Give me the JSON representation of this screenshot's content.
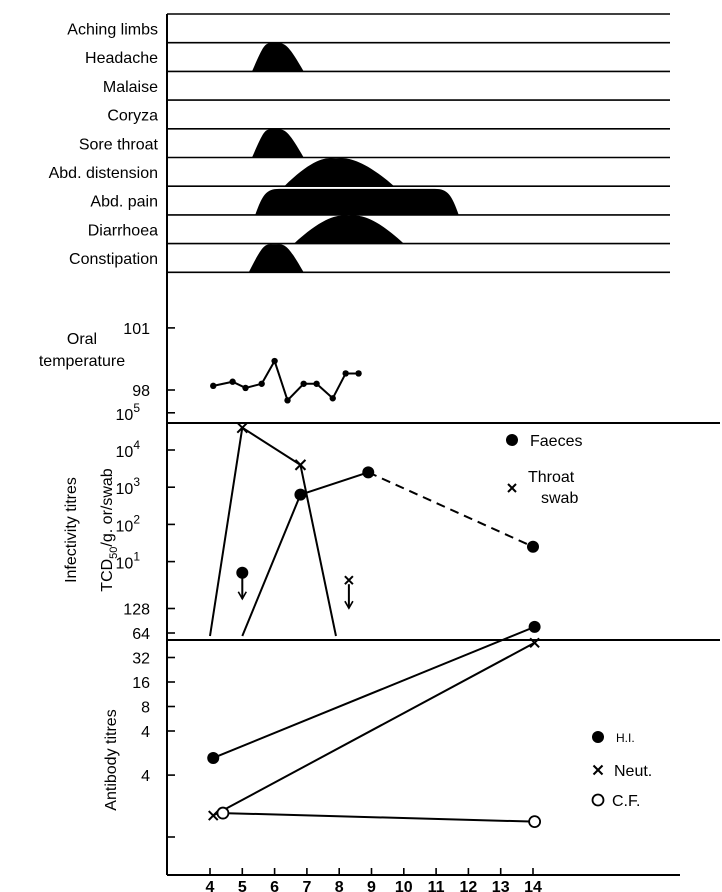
{
  "chart_data": [
    {
      "type": "timeline",
      "panel": "symptoms",
      "rows": [
        {
          "label": "Aching limbs",
          "episodes": []
        },
        {
          "label": "Headache",
          "episodes": [
            {
              "start": 5.3,
              "end": 6.9,
              "peak": 6.0
            }
          ]
        },
        {
          "label": "Malaise",
          "episodes": []
        },
        {
          "label": "Coryza",
          "episodes": []
        },
        {
          "label": "Sore throat",
          "episodes": [
            {
              "start": 5.3,
              "end": 6.9,
              "peak": 6.0
            }
          ]
        },
        {
          "label": "Abd. distension",
          "episodes": [
            {
              "start": 6.3,
              "end": 9.7,
              "peak": 7.9
            }
          ]
        },
        {
          "label": "Abd. pain",
          "episodes": [
            {
              "start": 5.4,
              "end": 11.7,
              "peak": 8.5
            }
          ]
        },
        {
          "label": "Diarrhoea",
          "episodes": [
            {
              "start": 6.6,
              "end": 10.0,
              "peak": 8.3
            }
          ]
        },
        {
          "label": "Constipation",
          "episodes": [
            {
              "start": 5.2,
              "end": 6.9,
              "peak": 6.0
            }
          ]
        }
      ]
    },
    {
      "type": "line",
      "panel": "temperature",
      "ylabel": [
        "Oral",
        "temperature"
      ],
      "yticks": [
        "101",
        "98"
      ],
      "yscale_ticks": [
        101,
        98
      ],
      "series": [
        {
          "x": [
            4.1,
            4.7,
            5.1,
            5.6,
            6.0,
            6.4,
            6.9,
            7.3,
            7.8,
            8.2,
            8.6
          ],
          "y": [
            98.2,
            98.4,
            98.1,
            98.3,
            99.4,
            97.5,
            98.3,
            98.3,
            97.6,
            98.8,
            98.8
          ]
        }
      ]
    },
    {
      "type": "line",
      "panel": "infectivity",
      "ylabel": "Infectivity titres",
      "ylabel2": {
        "pre": "TCD",
        "sub": "50",
        "post": "/g. or/swab"
      },
      "yticks": [
        {
          "base": "10",
          "exp": "5",
          "log": 5
        },
        {
          "base": "10",
          "exp": "4",
          "log": 4
        },
        {
          "base": "10",
          "exp": "3",
          "log": 3
        },
        {
          "base": "10",
          "exp": "2",
          "log": 2
        },
        {
          "base": "10",
          "exp": "1",
          "log": 1
        }
      ],
      "yscale": "log10",
      "legend": [
        {
          "marker": "filled-circle",
          "label": [
            "Faeces"
          ]
        },
        {
          "marker": "cross",
          "label": [
            "Throat",
            "swab"
          ]
        }
      ],
      "series": [
        {
          "name": "Faeces",
          "x": [
            5,
            6.8,
            8.9,
            14
          ],
          "log10_y": [
            -1.0,
            2.8,
            3.4,
            1.4
          ],
          "below_detection_point": {
            "x": 5.0,
            "log10_y": 0.7
          },
          "dashed_from_index": 2
        },
        {
          "name": "Throat swab",
          "x": [
            4,
            5.0,
            6.8,
            7.9
          ],
          "log10_y": [
            -1.0,
            4.6,
            3.6,
            -1.0
          ],
          "below_detection_point": {
            "x": 8.3,
            "log10_y": 0.5
          }
        }
      ]
    },
    {
      "type": "line",
      "panel": "antibody",
      "ylabel": "Antibody titres",
      "yticks": [
        "128",
        "64",
        "32",
        "16",
        "8",
        "4",
        "4"
      ],
      "legend": [
        {
          "marker": "filled-circle",
          "label": "H.I."
        },
        {
          "marker": "cross",
          "label": "Neut."
        },
        {
          "marker": "open-circle",
          "label": "C.F."
        }
      ],
      "series": [
        {
          "name": "H.I.",
          "x": [
            4.1,
            14.05
          ],
          "log2_y": [
            0.9,
            6.25
          ]
        },
        {
          "name": "Neut.",
          "x": [
            4.1,
            14.05
          ],
          "log2_y": [
            -1.45,
            5.6
          ]
        },
        {
          "name": "C.F.",
          "x": [
            4.4,
            14.05
          ],
          "log2_y": [
            -1.35,
            -1.7
          ]
        }
      ]
    }
  ],
  "x_axis": {
    "ticks": [
      "4",
      "5",
      "6",
      "7",
      "8",
      "9",
      "10",
      "11",
      "12",
      "13",
      "14"
    ],
    "range": [
      4,
      14
    ]
  }
}
